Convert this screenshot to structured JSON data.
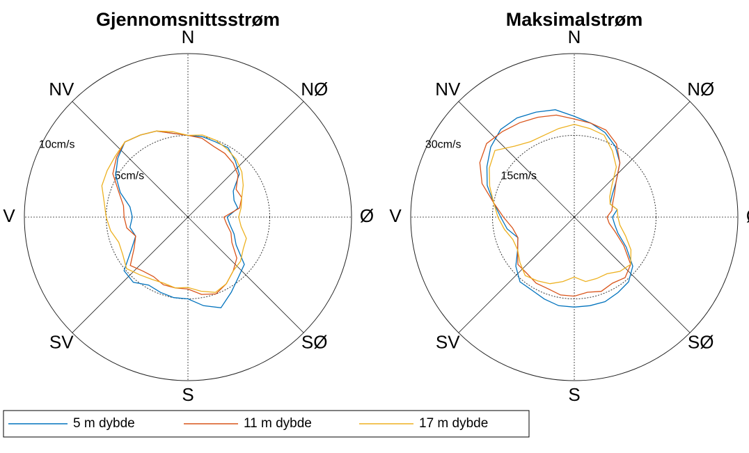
{
  "chart_data": [
    {
      "type": "polar",
      "title": "Gjennomsnittsstrøm",
      "theta": [
        0,
        10,
        20,
        30,
        40,
        50,
        60,
        70,
        80,
        90,
        100,
        110,
        120,
        130,
        140,
        150,
        160,
        170,
        180,
        190,
        200,
        210,
        220,
        230,
        240,
        250,
        260,
        270,
        280,
        290,
        300,
        310,
        320,
        330,
        340,
        350
      ],
      "directions": [
        "N",
        "NØ",
        "Ø",
        "SØ",
        "S",
        "SV",
        "V",
        "NV"
      ],
      "rlim": [
        0,
        10
      ],
      "rticks": [
        {
          "value": 5,
          "label": "5cm/s"
        },
        {
          "value": 10,
          "label": "10cm/s"
        }
      ],
      "series": [
        {
          "name": "5 m dybde",
          "color": "#0072bd",
          "values": [
            5.0,
            5.0,
            4.9,
            4.9,
            4.5,
            4.1,
            3.2,
            3.0,
            3.1,
            2.4,
            2.6,
            3.0,
            3.4,
            4.5,
            4.8,
            5.3,
            5.9,
            5.5,
            5.0,
            5.0,
            4.9,
            4.8,
            5.2,
            5.1,
            4.0,
            3.4,
            3.6,
            3.4,
            3.6,
            4.4,
            5.1,
            5.6,
            6.0,
            5.8,
            5.6,
            5.2
          ]
        },
        {
          "name": "11 m dybde",
          "color": "#d95319",
          "values": [
            5.0,
            4.9,
            4.6,
            4.5,
            4.3,
            4.0,
            3.4,
            3.5,
            3.2,
            2.2,
            2.4,
            2.8,
            3.1,
            3.9,
            4.3,
            4.7,
            5.0,
            4.8,
            4.4,
            4.4,
            4.4,
            4.2,
            4.3,
            4.6,
            3.8,
            3.4,
            3.8,
            3.9,
            4.0,
            4.5,
            5.3,
            5.7,
            6.0,
            5.8,
            5.6,
            5.2
          ]
        },
        {
          "name": "17 m dybde",
          "color": "#edb120",
          "values": [
            5.0,
            5.1,
            5.0,
            4.8,
            4.6,
            4.3,
            3.9,
            3.5,
            3.3,
            3.1,
            3.3,
            3.8,
            3.9,
            4.2,
            4.3,
            4.7,
            4.9,
            4.6,
            4.3,
            4.4,
            4.3,
            4.4,
            4.6,
            4.9,
            4.6,
            4.5,
            4.8,
            5.0,
            5.2,
            5.6,
            5.7,
            5.8,
            6.0,
            5.8,
            5.6,
            5.3
          ]
        }
      ]
    },
    {
      "type": "polar",
      "title": "Maksimalstrøm",
      "theta": [
        0,
        10,
        20,
        30,
        40,
        50,
        60,
        70,
        80,
        90,
        100,
        110,
        120,
        130,
        140,
        150,
        160,
        170,
        180,
        190,
        200,
        210,
        220,
        230,
        240,
        250,
        260,
        270,
        280,
        290,
        300,
        310,
        320,
        330,
        340,
        350
      ],
      "directions": [
        "N",
        "NØ",
        "Ø",
        "SØ",
        "S",
        "SV",
        "V",
        "NV"
      ],
      "rlim": [
        0,
        30
      ],
      "rticks": [
        {
          "value": 15,
          "label": "15cm/s"
        },
        {
          "value": 30,
          "label": "30cm/s"
        }
      ],
      "series": [
        {
          "color": "#0072bd",
          "values": [
            18.5,
            17.5,
            16.5,
            15,
            13,
            10,
            8,
            7,
            8,
            7,
            7.5,
            8.5,
            11,
            14,
            15.5,
            16,
            16.5,
            16.5,
            16.5,
            16.5,
            16,
            15.5,
            15.5,
            14,
            12,
            11,
            12.5,
            13.5,
            15,
            17,
            18.5,
            20,
            21,
            21,
            20.5,
            20
          ]
        },
        {
          "color": "#d95319",
          "values": [
            18,
            17.5,
            17,
            15.5,
            13,
            10,
            8.5,
            7.5,
            7,
            6,
            6.5,
            8,
            10.5,
            13.5,
            14.5,
            14,
            14.5,
            14,
            14.5,
            14.5,
            14,
            14,
            13.5,
            13.5,
            12,
            11,
            11.5,
            13,
            15,
            18,
            20,
            21,
            20.5,
            20,
            19.5,
            19
          ]
        },
        {
          "color": "#edb120",
          "values": [
            17,
            16.5,
            16,
            14,
            12,
            9,
            7.5,
            7,
            8,
            8,
            8.5,
            10,
            12,
            13.5,
            13,
            12,
            12,
            12,
            11,
            12,
            13,
            13.5,
            14,
            13,
            12,
            12,
            13,
            14,
            15,
            16.5,
            18,
            19,
            17,
            16,
            16,
            16.5
          ]
        }
      ]
    }
  ]
}
